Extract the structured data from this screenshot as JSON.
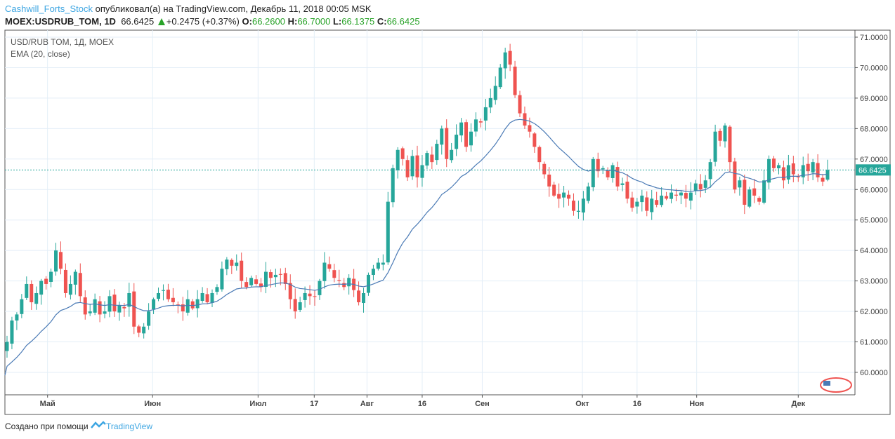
{
  "header": {
    "user": "Cashwill_Forts_Stock",
    "published": "опубликовал(а) на TradingView.com, Декабрь 11, 2018 00:05 MSK",
    "symbol": "MOEX:USDRUB_TOM, 1D",
    "last": "66.6425",
    "change": "+0.2475 (+0.37%)",
    "o_label": "O:",
    "o": "66.2600",
    "h_label": "H:",
    "h": "66.7000",
    "l_label": "L:",
    "l": "66.1375",
    "c_label": "C:",
    "c": "66.6425"
  },
  "legend": {
    "title": "USD/RUB TOM, 1Д, MOEX",
    "indicator": "EMA (20, close)"
  },
  "footer": {
    "text": "Создано при помощи",
    "brand": "TradingView"
  },
  "colors": {
    "up": "#26a69a",
    "down": "#ef5350",
    "ema": "#4a7ab5",
    "grid": "#e3eef7",
    "price_line": "#26a69a"
  },
  "chart_data": {
    "type": "candlestick",
    "ylim": [
      59.8,
      71.2
    ],
    "yticks": [
      "60.0000",
      "61.0000",
      "62.0000",
      "63.0000",
      "64.0000",
      "65.0000",
      "66.0000",
      "67.0000",
      "68.0000",
      "69.0000",
      "70.0000",
      "71.0000"
    ],
    "current_price": "66.6425",
    "xticks": [
      {
        "label": "Май",
        "i": 8.3
      },
      {
        "label": "Июн",
        "i": 29.8
      },
      {
        "label": "Июл",
        "i": 51.4
      },
      {
        "label": "17",
        "i": 62.9
      },
      {
        "label": "Авг",
        "i": 73.7
      },
      {
        "label": "16",
        "i": 85
      },
      {
        "label": "Сен",
        "i": 97.3
      },
      {
        "label": "Окт",
        "i": 117.8
      },
      {
        "label": "16",
        "i": 129
      },
      {
        "label": "Ноя",
        "i": 141.2
      },
      {
        "label": "Дек",
        "i": 162
      }
    ],
    "ema_period": 20,
    "closes": [
      61.0,
      61.7,
      61.9,
      62.4,
      62.9,
      62.3,
      62.6,
      63.0,
      62.9,
      63.3,
      64.0,
      63.4,
      62.6,
      62.9,
      63.3,
      62.5,
      61.9,
      62.0,
      62.4,
      61.9,
      62.0,
      62.5,
      62.0,
      62.2,
      62.1,
      62.6,
      61.5,
      61.3,
      61.5,
      62.0,
      62.4,
      62.6,
      62.7,
      62.4,
      62.3,
      62.2,
      62.0,
      62.4,
      62.1,
      62.4,
      62.6,
      62.3,
      62.6,
      62.8,
      63.4,
      63.7,
      63.5,
      63.6,
      63.0,
      62.8,
      63.1,
      62.9,
      62.8,
      63.3,
      63.1,
      63.2,
      63.2,
      62.9,
      62.4,
      62.0,
      62.3,
      62.6,
      62.5,
      62.5,
      63.0,
      63.6,
      63.4,
      63.1,
      63.0,
      62.8,
      63.1,
      62.7,
      62.3,
      62.6,
      63.2,
      63.4,
      63.6,
      63.6,
      65.6,
      66.7,
      67.3,
      67.0,
      66.4,
      67.1,
      66.4,
      66.8,
      67.2,
      66.9,
      67.5,
      68.0,
      67.0,
      67.3,
      67.8,
      68.2,
      67.4,
      67.9,
      68.3,
      68.2,
      68.7,
      69.0,
      69.4,
      70.0,
      70.5,
      70.1,
      69.1,
      68.5,
      68.1,
      67.9,
      67.4,
      66.9,
      66.5,
      66.1,
      65.8,
      65.7,
      65.9,
      65.7,
      65.3,
      65.3,
      65.7,
      66.1,
      67.0,
      66.6,
      66.7,
      66.4,
      66.8,
      66.1,
      66.2,
      65.7,
      65.4,
      65.6,
      65.8,
      65.3,
      65.7,
      65.5,
      65.8,
      65.7,
      65.9,
      65.8,
      65.9,
      65.7,
      65.9,
      66.2,
      66.0,
      66.3,
      66.9,
      67.9,
      67.6,
      68.1,
      66.9,
      66.0,
      66.3,
      65.5,
      66.0,
      65.8,
      65.6,
      66.3,
      67.0,
      66.7,
      66.8,
      66.3,
      66.8,
      66.5,
      66.4,
      66.8,
      66.6,
      66.9,
      66.4,
      66.26,
      66.6425
    ]
  }
}
